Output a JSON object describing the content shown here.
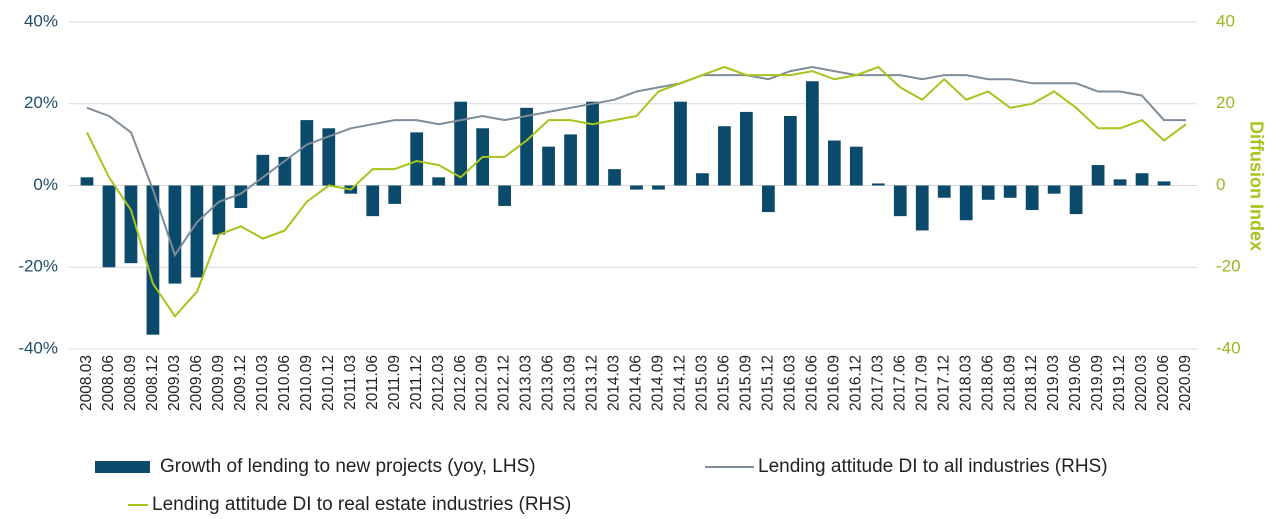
{
  "chart_data": {
    "type": "bar-line",
    "categories": [
      "2008.03",
      "2008.06",
      "2008.09",
      "2008.12",
      "2009.03",
      "2009.06",
      "2009.09",
      "2009.12",
      "2010.03",
      "2010.06",
      "2010.09",
      "2010.12",
      "2011.03",
      "2011.06",
      "2011.09",
      "2011.12",
      "2012.03",
      "2012.06",
      "2012.09",
      "2012.12",
      "2013.03",
      "2013.06",
      "2013.09",
      "2013.12",
      "2014.03",
      "2014.06",
      "2014.09",
      "2014.12",
      "2015.03",
      "2015.06",
      "2015.09",
      "2015.12",
      "2016.03",
      "2016.06",
      "2016.09",
      "2016.12",
      "2017.03",
      "2017.06",
      "2017.09",
      "2017.12",
      "2018.03",
      "2018.06",
      "2018.09",
      "2018.12",
      "2019.03",
      "2019.06",
      "2019.09",
      "2019.12",
      "2020.03",
      "2020.06",
      "2020.09"
    ],
    "series": [
      {
        "name": "Growth of lending to new projects (yoy, LHS)",
        "type": "bar",
        "color": "#0b4a6b",
        "axis": "y",
        "values": [
          2,
          -20,
          -19,
          -36.5,
          -24,
          -22.5,
          -12,
          -5.5,
          7.5,
          7,
          16,
          14,
          -2,
          -7.5,
          -4.5,
          13,
          2,
          20.5,
          14,
          -5,
          19,
          9.5,
          12.5,
          20.5,
          4,
          -1,
          -1,
          20.5,
          3,
          14.5,
          18,
          -6.5,
          17,
          25.5,
          11,
          9.5,
          0.5,
          -7.5,
          -11,
          -3,
          -8.5,
          -3.5,
          -3,
          -6,
          -2,
          -7,
          5,
          1.5,
          3,
          1,
          null
        ]
      },
      {
        "name": "Lending attitude DI to all industries (RHS)",
        "type": "line",
        "color": "#7f8c99",
        "axis": "y2",
        "values": [
          19,
          17,
          13,
          -1,
          -17,
          -9,
          -4,
          -2,
          2,
          6,
          10,
          12,
          14,
          15,
          16,
          16,
          15,
          16,
          17,
          16,
          17,
          18,
          19,
          20,
          21,
          23,
          24,
          25,
          27,
          27,
          27,
          26,
          28,
          29,
          28,
          27,
          27,
          27,
          26,
          27,
          27,
          26,
          26,
          25,
          25,
          25,
          23,
          23,
          22,
          16,
          16
        ]
      },
      {
        "name": "Lending attitude DI to real estate industries (RHS)",
        "type": "line",
        "color": "#a6c41c",
        "axis": "y2",
        "values": [
          13,
          2,
          -6,
          -24,
          -32,
          -26,
          -12,
          -10,
          -13,
          -11,
          -4,
          0,
          -1,
          4,
          4,
          6,
          5,
          2,
          7,
          7,
          11,
          16,
          16,
          15,
          16,
          17,
          23,
          25,
          27,
          29,
          27,
          27,
          27,
          28,
          26,
          27,
          29,
          24,
          21,
          26,
          21,
          23,
          19,
          20,
          23,
          19,
          14,
          14,
          16,
          11,
          15
        ]
      }
    ],
    "ylim": [
      -40,
      40
    ],
    "yticks": [
      {
        "value": -40,
        "label": "-40%"
      },
      {
        "value": -20,
        "label": "-20%"
      },
      {
        "value": 0,
        "label": "0%"
      },
      {
        "value": 20,
        "label": "20%"
      },
      {
        "value": 40,
        "label": "40%"
      }
    ],
    "y2lim": [
      -40,
      40
    ],
    "y2ticks": [
      -40,
      -20,
      0,
      20,
      40
    ],
    "y2label": "Diffusion Index",
    "grid": true
  }
}
